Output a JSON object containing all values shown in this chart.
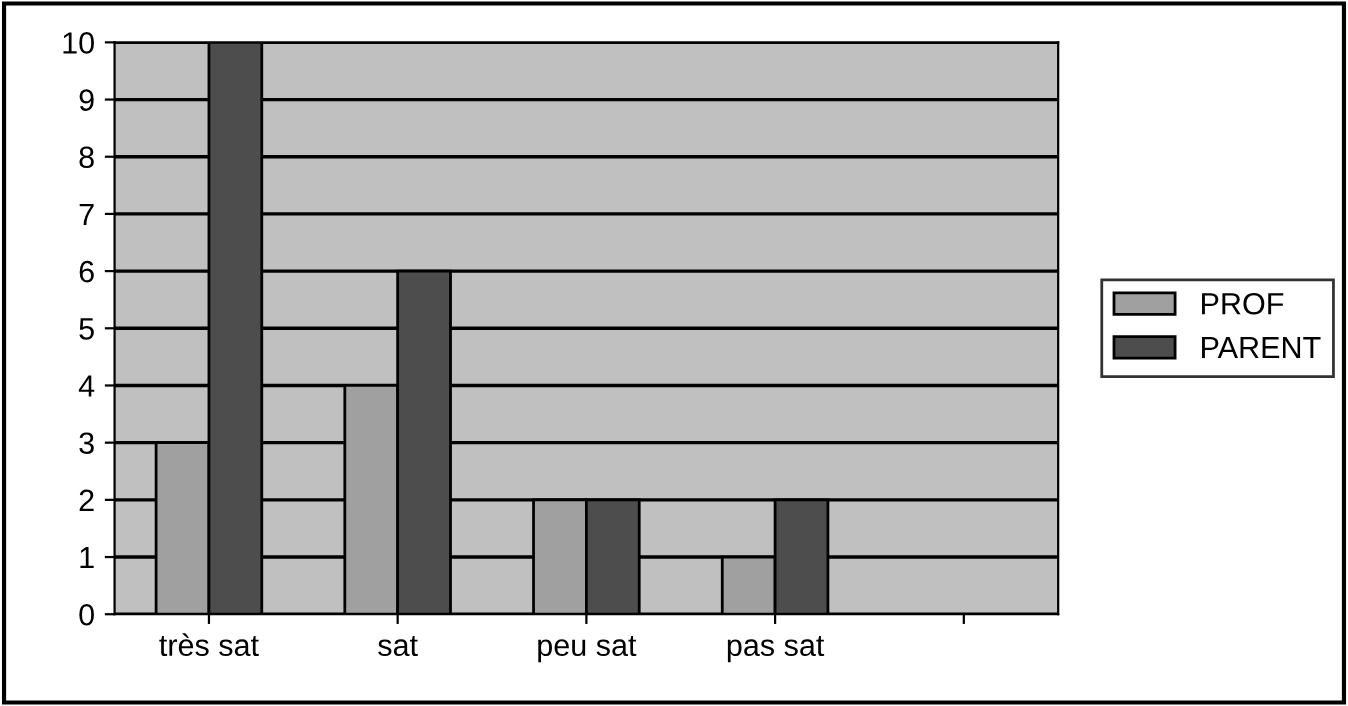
{
  "chart_data": {
    "type": "bar",
    "categories": [
      "très sat",
      "sat",
      "peu sat",
      "pas sat",
      null
    ],
    "series": [
      {
        "name": "PROF",
        "color": "#a0a0a0",
        "values": [
          3,
          4,
          2,
          1,
          null
        ]
      },
      {
        "name": "PARENT",
        "color": "#4d4d4d",
        "values": [
          10,
          6,
          2,
          2,
          null
        ]
      }
    ],
    "ylim": [
      0,
      10
    ],
    "yticks": [
      0,
      1,
      2,
      3,
      4,
      5,
      6,
      7,
      8,
      9,
      10
    ],
    "grid": "y",
    "legend": "right"
  }
}
